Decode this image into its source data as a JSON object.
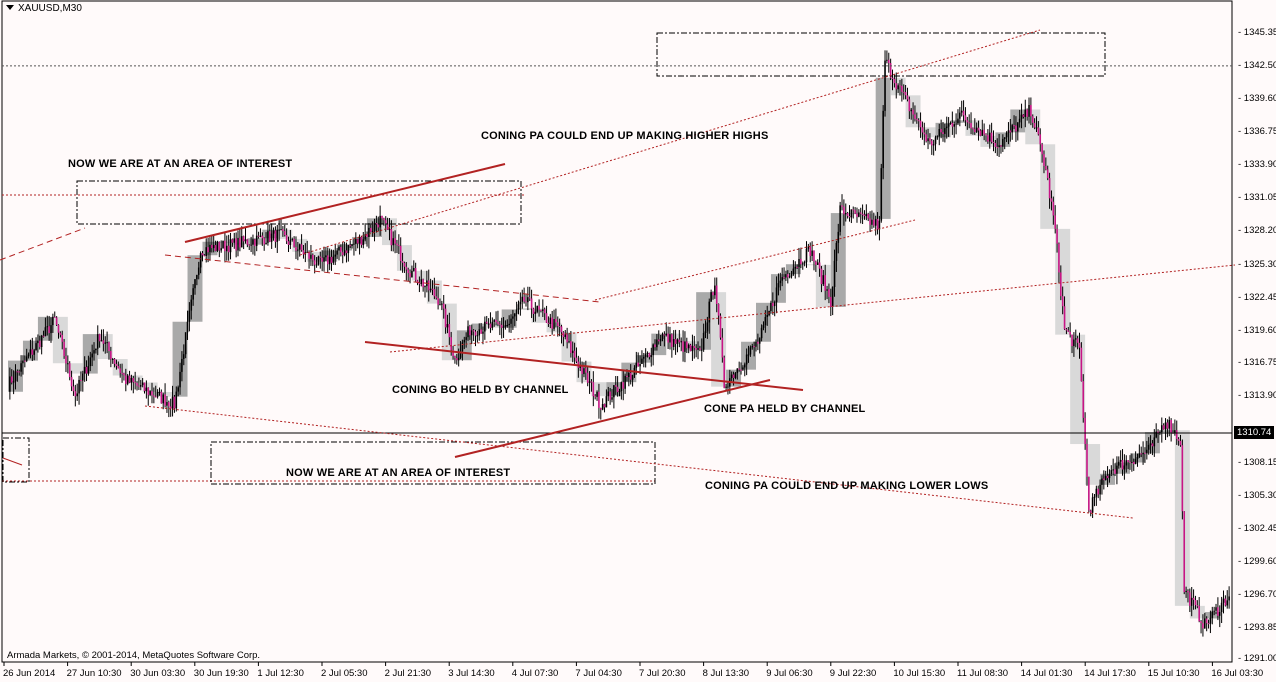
{
  "window": {
    "symbol_title": "XAUUSD,M30",
    "copyright": "Armada Markets, © 2001-2014, MetaQuotes Software Corp."
  },
  "chart_data": {
    "type": "candlestick",
    "title": "XAUUSD,M30",
    "y_ticks": [
      "1345.35",
      "1342.50",
      "1339.60",
      "1336.75",
      "1333.90",
      "1331.05",
      "1328.20",
      "1325.30",
      "1322.45",
      "1319.60",
      "1316.75",
      "1313.90",
      "1310.74",
      "1308.15",
      "1305.30",
      "1302.45",
      "1299.60",
      "1296.70",
      "1293.85",
      "1291.00"
    ],
    "ylim": [
      1291.0,
      1345.35
    ],
    "current_price": "1310.74",
    "x_ticks": [
      "26 Jun 2014",
      "27 Jun 10:30",
      "30 Jun 03:30",
      "30 Jun 19:30",
      "1 Jul 12:30",
      "2 Jul 05:30",
      "2 Jul 21:30",
      "3 Jul 14:30",
      "4 Jul 07:30",
      "7 Jul 04:30",
      "7 Jul 20:30",
      "8 Jul 13:30",
      "9 Jul 06:30",
      "9 Jul 22:30",
      "10 Jul 15:30",
      "11 Jul 08:30",
      "14 Jul 01:30",
      "14 Jul 17:30",
      "15 Jul 10:30",
      "16 Jul 03:30"
    ],
    "approx_price_path": {
      "bar_index": [
        0,
        25,
        36,
        49,
        63,
        89,
        103,
        119,
        145,
        167,
        188,
        199,
        215,
        231,
        239,
        247,
        268,
        276,
        295,
        317,
        338,
        349,
        370,
        378,
        383,
        402,
        413,
        429,
        440,
        445,
        466,
        469,
        477,
        493,
        509,
        530,
        547,
        555,
        560,
        565,
        573,
        578,
        589,
        611,
        619,
        627,
        629,
        640,
        653
      ],
      "price": [
        1314.9,
        1320.5,
        1314.0,
        1319.2,
        1315.3,
        1313.2,
        1326.6,
        1327.0,
        1327.9,
        1325.3,
        1327.4,
        1329.2,
        1324.8,
        1322.2,
        1317.1,
        1319.7,
        1320.1,
        1322.2,
        1319.7,
        1313.2,
        1316.6,
        1319.2,
        1317.5,
        1324.0,
        1314.9,
        1318.8,
        1324.0,
        1326.6,
        1322.2,
        1330.0,
        1328.7,
        1343.0,
        1340.4,
        1335.7,
        1338.3,
        1335.7,
        1338.7,
        1333.5,
        1328.3,
        1319.7,
        1317.9,
        1304.1,
        1307.5,
        1309.3,
        1311.9,
        1310.1,
        1297.2,
        1294.1,
        1296.7
      ]
    },
    "colors": {
      "bull_candle": "#000000",
      "bear_candle": "#c71585",
      "htf_up": "#a9a9a9",
      "htf_down": "#d9d9d9",
      "trendline": "#b22222",
      "background": "#fffafa"
    },
    "annotations": [
      "NOW WE ARE AT AN AREA OF INTEREST",
      "CONING PA COULD END UP MAKING HIGHER HIGHS",
      "CONING BO HELD BY CHANNEL",
      "CONE PA HELD BY CHANNEL",
      "NOW WE ARE AT AN AREA OF INTEREST",
      "CONING PA COULD END UP MAKING LOWER LOWS"
    ],
    "grid": false
  }
}
